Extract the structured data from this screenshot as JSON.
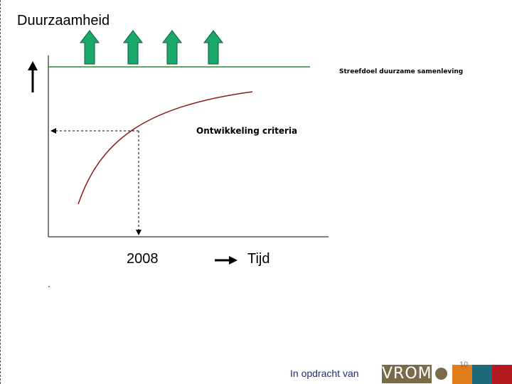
{
  "slide": {
    "title": "Duurzaamheid",
    "target_label": "Streefdoel duurzame samenleving",
    "criteria_label": "Ontwikkeling criteria",
    "year_label": "2008",
    "time_label": "Tijd",
    "page_number": "10"
  },
  "footer": {
    "text": "In opdracht van",
    "logo": "VROM"
  },
  "colors": {
    "arrow_green": "#19a86a",
    "target_line": "#2e8b3a",
    "curve": "#8b1a1a",
    "logo": "#7a6a4a",
    "orange": "#e07c1a",
    "teal": "#1b6a7a",
    "red": "#b3191f"
  }
}
